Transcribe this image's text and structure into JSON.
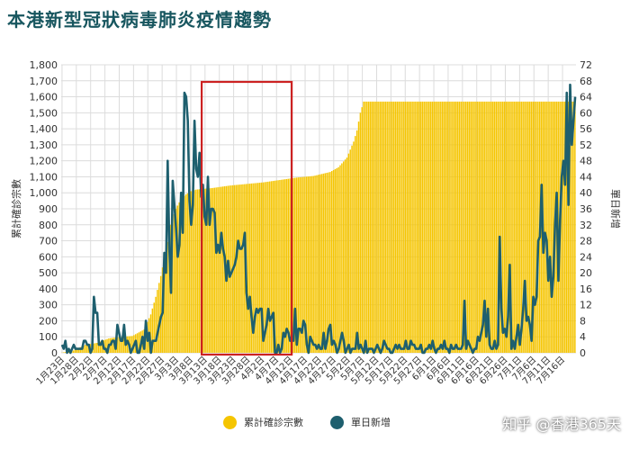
{
  "page_title": "本港新型冠狀病毒肺炎疫情趨勢",
  "watermark": "知乎 @香港365天",
  "colors": {
    "bar": "#f5c500",
    "line": "#1e5f6e",
    "highlight": "#cc2222",
    "grid": "#dcdcdc"
  },
  "chart_data": {
    "type": "bar",
    "title": "",
    "ylabel_left": "累計確診宗數",
    "ylabel_right": "單日新增",
    "ylim_left": [
      0,
      1800
    ],
    "ylim_right": [
      0,
      72
    ],
    "yticks_left": [
      "0",
      "100",
      "200",
      "300",
      "400",
      "500",
      "600",
      "700",
      "800",
      "900",
      "1,000",
      "1,100",
      "1,200",
      "1,300",
      "1,400",
      "1,500",
      "1,600",
      "1,700",
      "1,800"
    ],
    "yticks_right": [
      "0",
      "4",
      "8",
      "12",
      "16",
      "20",
      "24",
      "28",
      "32",
      "36",
      "40",
      "44",
      "48",
      "52",
      "56",
      "60",
      "64",
      "68",
      "72"
    ],
    "xticks": [
      "1月23日",
      "1月28日",
      "2月2日",
      "2月7日",
      "2月12日",
      "2月17日",
      "2月22日",
      "2月27日",
      "3月3日",
      "3月8日",
      "3月13日",
      "3月18日",
      "3月23日",
      "3月28日",
      "4月2日",
      "4月7日",
      "4月12日",
      "4月17日",
      "4月22日",
      "4月27日",
      "5月2日",
      "5月7日",
      "5月12日",
      "5月17日",
      "5月22日",
      "5月27日",
      "6月1日",
      "6月6日",
      "6月11日",
      "6月16日",
      "6月21日",
      "6月26日",
      "7月1日",
      "7月6日",
      "7月11日",
      "7月16日"
    ],
    "series": [
      {
        "name": "累計確診宗數",
        "kind": "bar",
        "axis": "left",
        "keypoints": [
          [
            0,
            1
          ],
          [
            7,
            15
          ],
          [
            14,
            50
          ],
          [
            21,
            62
          ],
          [
            28,
            90
          ],
          [
            35,
            100
          ],
          [
            42,
            105
          ],
          [
            49,
            145
          ],
          [
            53,
            240
          ],
          [
            56,
            350
          ],
          [
            59,
            480
          ],
          [
            62,
            640
          ],
          [
            65,
            800
          ],
          [
            68,
            900
          ],
          [
            71,
            960
          ],
          [
            74,
            990
          ],
          [
            77,
            1010
          ],
          [
            80,
            1020
          ],
          [
            90,
            1030
          ],
          [
            100,
            1045
          ],
          [
            110,
            1055
          ],
          [
            120,
            1065
          ],
          [
            130,
            1080
          ],
          [
            140,
            1095
          ],
          [
            150,
            1105
          ],
          [
            160,
            1130
          ],
          [
            165,
            1160
          ],
          [
            170,
            1220
          ],
          [
            172,
            1270
          ],
          [
            174,
            1320
          ],
          [
            176,
            1390
          ],
          [
            178,
            1500
          ],
          [
            180,
            1570
          ]
        ]
      },
      {
        "name": "單日新增",
        "kind": "line",
        "axis": "right",
        "values": [
          2,
          1,
          3,
          0,
          1,
          0,
          1,
          2,
          1,
          1,
          1,
          1,
          1,
          3,
          3,
          2,
          2,
          0,
          1,
          14,
          10,
          10,
          2,
          2,
          3,
          1,
          1,
          0,
          2,
          2,
          3,
          3,
          1,
          7,
          5,
          3,
          3,
          7,
          2,
          3,
          2,
          0,
          1,
          2,
          3,
          0,
          0,
          2,
          4,
          1,
          8,
          3,
          5,
          0,
          3,
          3,
          3,
          5,
          7,
          9,
          10,
          25,
          20,
          48,
          26,
          15,
          43,
          37,
          31,
          24,
          27,
          40,
          30,
          65,
          64,
          58,
          38,
          32,
          37,
          58,
          46,
          44,
          50,
          39,
          42,
          34,
          32,
          44,
          32,
          36,
          36,
          35,
          25,
          27,
          25,
          30,
          26,
          24,
          18,
          23,
          19,
          20,
          21,
          22,
          24,
          28,
          26,
          26,
          27,
          30,
          15,
          11,
          14,
          9,
          5,
          9,
          11,
          10,
          11,
          11,
          3,
          5,
          7,
          11,
          8,
          9,
          10,
          0,
          0,
          2,
          0,
          1,
          5,
          4,
          6,
          5,
          3,
          4,
          3,
          11,
          2,
          6,
          6,
          5,
          8,
          7,
          2,
          0,
          4,
          3,
          2,
          2,
          1,
          2,
          1,
          1,
          5,
          1,
          3,
          6,
          7,
          2,
          3,
          2,
          0,
          1,
          3,
          5,
          3,
          0,
          1,
          2,
          0,
          1,
          1,
          1,
          5,
          1,
          2,
          1,
          0,
          3,
          0,
          1,
          1,
          1,
          0,
          1,
          2,
          1,
          0,
          1,
          3,
          2,
          1,
          1,
          0,
          0,
          1,
          2,
          1,
          2,
          1,
          1,
          1,
          3,
          1,
          1,
          3,
          2,
          2,
          1,
          1,
          1,
          2,
          0,
          0,
          1,
          1,
          2,
          1,
          3,
          1,
          0,
          1,
          1,
          2,
          1,
          3,
          1,
          1,
          0,
          2,
          1,
          1,
          2,
          1,
          1,
          1,
          2,
          13,
          1,
          3,
          2,
          1,
          0,
          1,
          1,
          4,
          3,
          5,
          7,
          13,
          4,
          11,
          2,
          1,
          1,
          3,
          1,
          2,
          29,
          11,
          5,
          6,
          4,
          9,
          22,
          1,
          3,
          1,
          4,
          7,
          2,
          6,
          11,
          18,
          8,
          9,
          7,
          3,
          14,
          12,
          14,
          28,
          29,
          42,
          25,
          30,
          28,
          18,
          24,
          14,
          19,
          32,
          40,
          18,
          33,
          44,
          48,
          42,
          65,
          37,
          67,
          52,
          58,
          64
        ]
      }
    ],
    "highlight_box": {
      "from_category": "3月13日",
      "to_category": "4月12日"
    }
  }
}
